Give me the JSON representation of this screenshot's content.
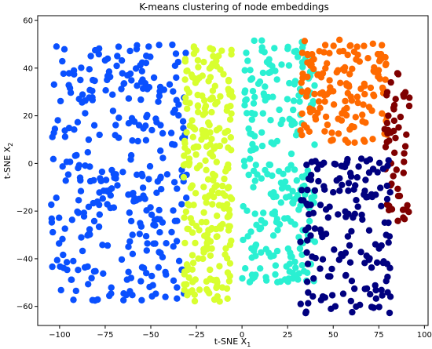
{
  "chart_data": {
    "type": "scatter",
    "title": "K-means clustering of node embeddings",
    "xlabel": "t-SNE X",
    "xlabel_sub": "1",
    "ylabel": "t-SNE X",
    "ylabel_sub": "2",
    "xlim": [
      -112,
      102
    ],
    "ylim": [
      -68,
      62
    ],
    "xticks": [
      -100,
      -75,
      -50,
      -25,
      0,
      25,
      50,
      75,
      100
    ],
    "yticks": [
      -60,
      -40,
      -20,
      0,
      20,
      40,
      60
    ],
    "grid": false,
    "legend": "none",
    "clusters": [
      {
        "color": "#0a50ff",
        "region": {
          "x": [
            -105,
            -30
          ],
          "y": [
            -58,
            50
          ]
        },
        "count": 330
      },
      {
        "color": "#d8ff2f",
        "region": {
          "x": [
            -32,
            -5
          ],
          "y": [
            -58,
            52
          ]
        },
        "count": 260
      },
      {
        "color": "#2af0d2",
        "region": {
          "x": [
            0,
            40
          ],
          "y": [
            -50,
            52
          ]
        },
        "count": 250
      },
      {
        "color": "#ff6a00",
        "region": {
          "x": [
            32,
            80
          ],
          "y": [
            8,
            52
          ]
        },
        "count": 150
      },
      {
        "color": "#7f0000",
        "region": {
          "x": [
            78,
            92
          ],
          "y": [
            -25,
            38
          ]
        },
        "count": 55
      },
      {
        "color": "#00007f",
        "region": {
          "x": [
            32,
            82
          ],
          "y": [
            -63,
            2
          ]
        },
        "count": 170
      }
    ]
  }
}
